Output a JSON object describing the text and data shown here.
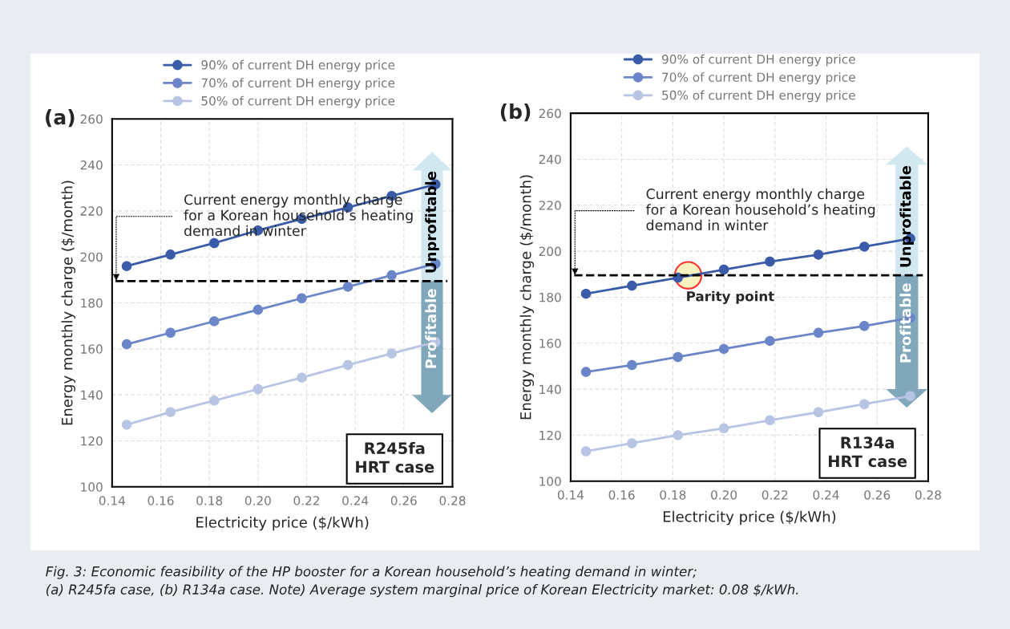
{
  "chart_data": [
    {
      "type": "line",
      "title": "(a)",
      "xlabel": "Electricity price ($/kWh)",
      "ylabel": "Energy monthly charge ($/month)",
      "x": [
        0.146,
        0.164,
        0.182,
        0.2,
        0.218,
        0.237,
        0.255,
        0.273
      ],
      "series": [
        {
          "name": "90% of current DH energy price",
          "color": "#3a5ba8",
          "values": [
            196,
            201,
            206,
            211.5,
            216.5,
            221.5,
            226.5,
            231.5
          ]
        },
        {
          "name": "70% of current DH energy price",
          "color": "#6a86c8",
          "values": [
            162,
            167,
            172,
            177,
            182,
            187,
            192,
            197
          ]
        },
        {
          "name": "50% of current DH energy price",
          "color": "#b8c4e4",
          "values": [
            127,
            132.5,
            137.5,
            142.5,
            147.5,
            153,
            158,
            163
          ]
        }
      ],
      "xlim": [
        0.14,
        0.28
      ],
      "xticks": [
        0.14,
        0.16,
        0.18,
        {
          "value": 0.2,
          "label": "0.20"
        },
        0.22,
        0.24,
        0.26,
        0.28
      ],
      "ylim": [
        100,
        260
      ],
      "yticks": [
        100,
        120,
        140,
        160,
        180,
        200,
        220,
        240,
        260
      ],
      "ref_lines": [
        {
          "axis": "y",
          "value": 189.5,
          "label": "Current energy monthly charge\nfor a Korean household’s heating\ndemand in winter",
          "color": "#000000",
          "line_style": "dashed"
        }
      ],
      "annotations": [
        "R245fa\nHRT case",
        "Unprofitable",
        "Profitable"
      ],
      "grid": true,
      "legend": "top",
      "marker": "circle",
      "line_style": "solid"
    },
    {
      "type": "line",
      "title": "(b)",
      "xlabel": "Electricity price ($/kWh)",
      "ylabel": "Energy monthly charge ($/month)",
      "x": [
        0.146,
        0.164,
        0.182,
        0.2,
        0.218,
        0.237,
        0.255,
        0.273
      ],
      "series": [
        {
          "name": "90% of current DH energy price",
          "color": "#3a5ba8",
          "values": [
            181.5,
            185,
            188.5,
            192,
            195.5,
            198.5,
            202,
            205.5
          ]
        },
        {
          "name": "70% of current DH energy price",
          "color": "#6a86c8",
          "values": [
            147.5,
            150.5,
            154,
            157.5,
            161,
            164.5,
            167.5,
            171
          ]
        },
        {
          "name": "50% of current DH energy price",
          "color": "#b8c4e4",
          "values": [
            113,
            116.5,
            120,
            123,
            126.5,
            130,
            133.5,
            137
          ]
        }
      ],
      "xlim": [
        0.14,
        0.28
      ],
      "xticks": [
        0.14,
        0.16,
        0.18,
        {
          "value": 0.2,
          "label": "0.20"
        },
        0.22,
        0.24,
        0.26,
        0.28
      ],
      "ylim": [
        100,
        260
      ],
      "yticks": [
        100,
        120,
        140,
        160,
        180,
        200,
        220,
        240,
        260
      ],
      "ref_lines": [
        {
          "axis": "y",
          "value": 189.5,
          "label": "Current energy monthly charge\nfor a Korean household’s heating\ndemand in winter",
          "color": "#000000",
          "line_style": "dashed"
        }
      ],
      "annotations": [
        "R134a\nHRT case",
        "Unprofitable",
        "Profitable",
        {
          "text": "Parity point",
          "x": 0.186,
          "y": 189.5
        },
        "Fig. 3: Economic feasibility of the HP booster for a Korean household’s heating demand in winter;\n(a) R245fa case, (b) R134a case. Note) Average system marginal price of Korean Electricity market: 0.08 $/kWh."
      ],
      "grid": true,
      "legend": "top",
      "marker": "circle",
      "line_style": "solid"
    }
  ]
}
